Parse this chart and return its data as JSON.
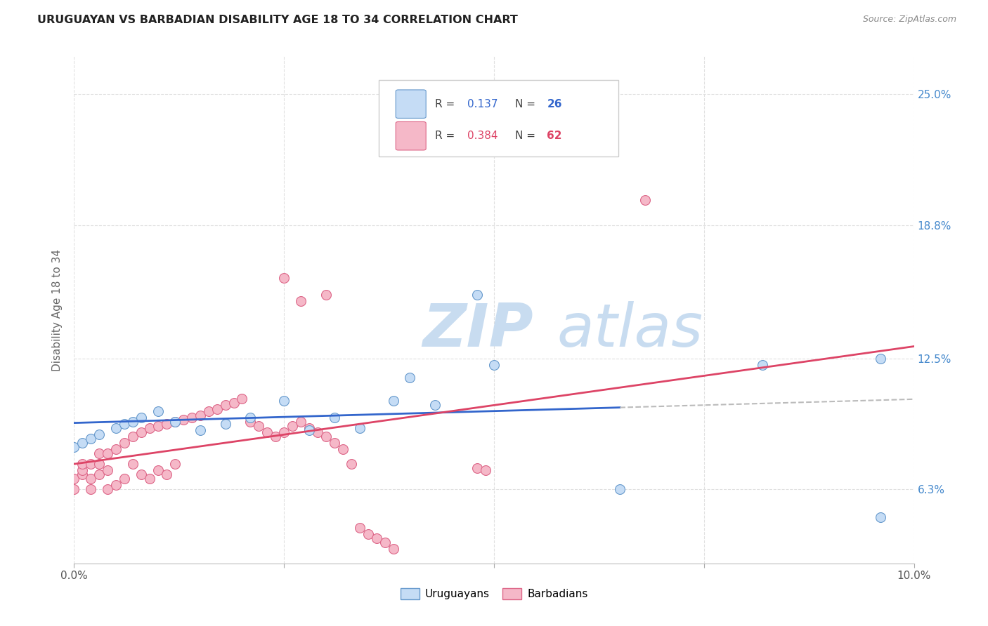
{
  "title": "URUGUAYAN VS BARBADIAN DISABILITY AGE 18 TO 34 CORRELATION CHART",
  "source": "Source: ZipAtlas.com",
  "ylabel": "Disability Age 18 to 34",
  "xlim": [
    0.0,
    0.1
  ],
  "ylim": [
    0.028,
    0.268
  ],
  "ytick_vals": [
    0.063,
    0.125,
    0.188,
    0.25
  ],
  "ytick_labels_right": [
    "6.3%",
    "12.5%",
    "18.8%",
    "25.0%"
  ],
  "xtick_vals": [
    0.0,
    0.025,
    0.05,
    0.075,
    0.1
  ],
  "xtick_labels": [
    "0.0%",
    "",
    "",
    "",
    "10.0%"
  ],
  "uruguayan_face": "#c5dcf5",
  "uruguayan_edge": "#6699cc",
  "barbadian_face": "#f5b8c8",
  "barbadian_edge": "#dd6688",
  "blue_line": "#3366cc",
  "pink_line": "#dd4466",
  "dash_line": "#bbbbbb",
  "grid_color": "#e0e0e0",
  "right_tick_color": "#4488cc",
  "watermark_color": "#c8dcf0",
  "legend_face_uru": "#c5dcf5",
  "legend_edge_uru": "#6699cc",
  "legend_face_barb": "#f5b8c8",
  "legend_edge_barb": "#dd6688",
  "R_uru": "0.137",
  "N_uru": "26",
  "R_barb": "0.384",
  "N_barb": "62",
  "uru_x": [
    0.0,
    0.001,
    0.002,
    0.003,
    0.005,
    0.006,
    0.007,
    0.008,
    0.01,
    0.012,
    0.015,
    0.018,
    0.021,
    0.025,
    0.028,
    0.031,
    0.034,
    0.038,
    0.04,
    0.043,
    0.048,
    0.05,
    0.065,
    0.082,
    0.096,
    0.096
  ],
  "uru_y": [
    0.083,
    0.085,
    0.087,
    0.089,
    0.092,
    0.094,
    0.095,
    0.097,
    0.1,
    0.095,
    0.091,
    0.094,
    0.097,
    0.105,
    0.091,
    0.097,
    0.092,
    0.105,
    0.116,
    0.103,
    0.155,
    0.122,
    0.063,
    0.122,
    0.05,
    0.125
  ],
  "barb_x": [
    0.0,
    0.0,
    0.001,
    0.001,
    0.001,
    0.002,
    0.002,
    0.002,
    0.003,
    0.003,
    0.003,
    0.004,
    0.004,
    0.004,
    0.005,
    0.005,
    0.006,
    0.006,
    0.007,
    0.007,
    0.008,
    0.008,
    0.009,
    0.009,
    0.01,
    0.01,
    0.011,
    0.011,
    0.012,
    0.012,
    0.013,
    0.014,
    0.015,
    0.016,
    0.017,
    0.018,
    0.019,
    0.02,
    0.021,
    0.022,
    0.023,
    0.024,
    0.025,
    0.026,
    0.027,
    0.028,
    0.029,
    0.03,
    0.031,
    0.032,
    0.033,
    0.034,
    0.035,
    0.036,
    0.037,
    0.038,
    0.048,
    0.049,
    0.068,
    0.025,
    0.027,
    0.03
  ],
  "barb_y": [
    0.063,
    0.068,
    0.07,
    0.072,
    0.075,
    0.063,
    0.068,
    0.075,
    0.07,
    0.075,
    0.08,
    0.063,
    0.072,
    0.08,
    0.065,
    0.082,
    0.068,
    0.085,
    0.075,
    0.088,
    0.07,
    0.09,
    0.068,
    0.092,
    0.072,
    0.093,
    0.07,
    0.094,
    0.075,
    0.095,
    0.096,
    0.097,
    0.098,
    0.1,
    0.101,
    0.103,
    0.104,
    0.106,
    0.095,
    0.093,
    0.09,
    0.088,
    0.09,
    0.093,
    0.095,
    0.092,
    0.09,
    0.088,
    0.085,
    0.082,
    0.075,
    0.045,
    0.042,
    0.04,
    0.038,
    0.035,
    0.073,
    0.072,
    0.2,
    0.163,
    0.152,
    0.155
  ]
}
